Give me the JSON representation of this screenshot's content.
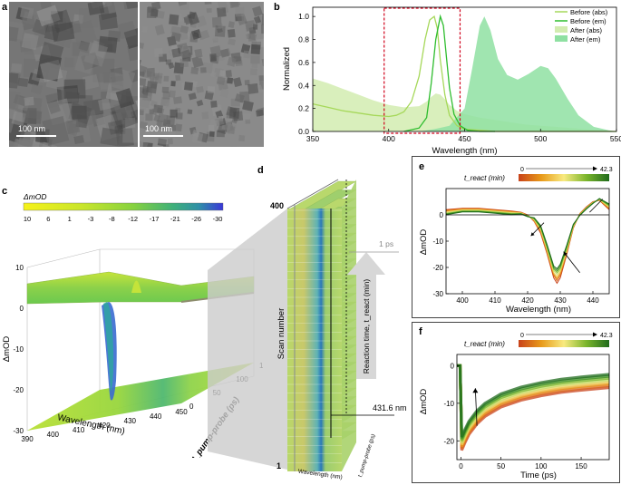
{
  "panels": {
    "a": "a",
    "b": "b",
    "c": "c",
    "d": "d",
    "e": "e",
    "f": "f"
  },
  "tem": {
    "left_scale": "100 nm",
    "right_scale": "100 nm"
  },
  "colors": {
    "before_abs": "#a6d85a",
    "before_em": "#2ebd2e",
    "after_abs_fill": "#d2ecb0",
    "after_em_fill": "#8fe0a2",
    "highlight": "#d0021b",
    "box_border": "#444444"
  },
  "chart_data": [
    {
      "id": "b",
      "type": "line",
      "title": "",
      "xlabel": "Wavelength (nm)",
      "ylabel": "Normalized",
      "xlim": [
        350,
        550
      ],
      "ylim": [
        0,
        1.08
      ],
      "xticks": [
        "350",
        "400",
        "450",
        "500",
        "550"
      ],
      "yticks": [
        "0.0",
        "0.2",
        "0.4",
        "0.6",
        "0.8",
        "1.0"
      ],
      "highlight_box_x": [
        397,
        447
      ],
      "legend": [
        "Before (abs)",
        "Before (em)",
        "After (abs)",
        "After (em)"
      ],
      "series": [
        {
          "name": "After (abs)",
          "style": "area",
          "x": [
            350,
            360,
            370,
            380,
            390,
            400,
            410,
            420,
            425,
            428,
            431,
            434,
            437,
            440,
            445,
            450,
            460,
            470,
            480,
            490,
            500,
            510,
            520,
            530,
            540,
            550
          ],
          "y": [
            0.46,
            0.42,
            0.37,
            0.32,
            0.27,
            0.23,
            0.21,
            0.22,
            0.26,
            0.3,
            0.33,
            0.32,
            0.28,
            0.23,
            0.18,
            0.15,
            0.12,
            0.1,
            0.08,
            0.06,
            0.05,
            0.04,
            0.03,
            0.02,
            0.01,
            0.0
          ]
        },
        {
          "name": "After (em)",
          "style": "area",
          "x": [
            420,
            430,
            440,
            450,
            455,
            460,
            463,
            467,
            472,
            478,
            485,
            492,
            500,
            505,
            510,
            518,
            525,
            535,
            545,
            550
          ],
          "y": [
            0.0,
            0.02,
            0.05,
            0.2,
            0.55,
            0.92,
            1.0,
            0.88,
            0.63,
            0.49,
            0.45,
            0.5,
            0.57,
            0.55,
            0.46,
            0.28,
            0.14,
            0.04,
            0.01,
            0.0
          ]
        },
        {
          "name": "Before (abs)",
          "style": "line",
          "x": [
            350,
            360,
            370,
            380,
            390,
            400,
            405,
            410,
            415,
            420,
            424,
            427,
            430,
            432,
            434,
            437,
            440,
            445,
            450,
            460,
            470,
            480,
            500,
            550
          ],
          "y": [
            0.24,
            0.21,
            0.18,
            0.16,
            0.14,
            0.13,
            0.14,
            0.17,
            0.26,
            0.48,
            0.8,
            0.97,
            1.0,
            0.9,
            0.62,
            0.32,
            0.14,
            0.05,
            0.02,
            0.01,
            0.0,
            0.0,
            0.0,
            0.0
          ]
        },
        {
          "name": "Before (em)",
          "style": "line",
          "x": [
            410,
            420,
            425,
            428,
            431,
            434,
            436,
            438,
            440,
            443,
            447,
            452,
            460,
            470
          ],
          "y": [
            0.0,
            0.03,
            0.12,
            0.42,
            0.8,
            1.0,
            0.92,
            0.65,
            0.38,
            0.15,
            0.05,
            0.01,
            0.0,
            0.0
          ]
        }
      ]
    },
    {
      "id": "c",
      "type": "heatmap",
      "title": "ΔmOD",
      "xlabel": "Wavelength (nm)",
      "ylabel": "t_pump-probe (ps)",
      "zlabel": "ΔmOD",
      "colorbar_ticks": [
        "10",
        "6",
        "1",
        "-3",
        "-8",
        "-12",
        "-17",
        "-21",
        "-26",
        "-30"
      ],
      "colorbar_colors": [
        "#f6f21a",
        "#e2ec22",
        "#c7e52c",
        "#a8dc36",
        "#86d23f",
        "#5fc751",
        "#3eb07a",
        "#2f8fa8",
        "#2f63c9",
        "#3a37d8"
      ],
      "xticks": [
        "390",
        "400",
        "410",
        "420",
        "430",
        "440",
        "450"
      ],
      "yticks": [
        "0",
        "50",
        "100",
        "150"
      ],
      "zticks": [
        "10",
        "0",
        "-10",
        "-20",
        "-30"
      ],
      "zlim": [
        -30,
        10
      ],
      "min_value": -30,
      "min_wavelength": 429
    },
    {
      "id": "d",
      "type": "heatmap",
      "title": "",
      "ylabel": "Scan number",
      "xlabel": "Wavelength (nm)",
      "zlabel": "t_pump-probe (ps)",
      "scan_range": [
        "1",
        "400"
      ],
      "slice_time": "1 ps",
      "slice_wavelength": "431.6 nm",
      "arrow_text": "Reaction time, t_react (min)"
    },
    {
      "id": "e",
      "type": "line",
      "xlabel": "Wavelength (nm)",
      "ylabel": "ΔmOD",
      "xlim": [
        395,
        445
      ],
      "ylim": [
        -30,
        10
      ],
      "xticks": [
        "400",
        "410",
        "420",
        "430",
        "440"
      ],
      "yticks": [
        "0",
        "-10",
        "-20",
        "-30"
      ],
      "colorbar_label": "t_react (min)",
      "colorbar_range": [
        "0",
        "42.3"
      ],
      "series_count": 8,
      "x": [
        395,
        400,
        405,
        410,
        415,
        418,
        420,
        422,
        424,
        426,
        428,
        429,
        430,
        432,
        434,
        436,
        438,
        440,
        442,
        445
      ],
      "series": [
        {
          "t": 0,
          "values": [
            2,
            2.5,
            2.5,
            2,
            1.5,
            1,
            0,
            -2.5,
            -7,
            -15,
            -24,
            -26,
            -24,
            -15,
            -5,
            0.5,
            3,
            5,
            5.5,
            2
          ]
        },
        {
          "t": 6,
          "values": [
            1.7,
            2.3,
            2.3,
            1.8,
            1.3,
            0.9,
            -0.1,
            -2.3,
            -6.5,
            -14.5,
            -23,
            -25,
            -23,
            -14.5,
            -4.8,
            0.4,
            2.8,
            4.9,
            5.6,
            2.3
          ]
        },
        {
          "t": 12,
          "values": [
            1.4,
            2.1,
            2.1,
            1.6,
            1.1,
            0.8,
            -0.2,
            -2.1,
            -6.1,
            -14,
            -22.5,
            -24.2,
            -22.3,
            -14,
            -4.6,
            0.3,
            2.7,
            4.8,
            5.7,
            2.6
          ]
        },
        {
          "t": 18,
          "values": [
            1.1,
            1.9,
            1.9,
            1.4,
            0.9,
            0.7,
            -0.3,
            -1.9,
            -5.7,
            -13.5,
            -22,
            -23.4,
            -21.6,
            -13.5,
            -4.4,
            0.2,
            2.6,
            4.7,
            5.8,
            2.9
          ]
        },
        {
          "t": 24,
          "values": [
            0.8,
            1.7,
            1.7,
            1.2,
            0.7,
            0.6,
            -0.4,
            -1.7,
            -5.3,
            -13,
            -21.3,
            -22.6,
            -20.9,
            -13,
            -4.2,
            0.1,
            2.5,
            4.6,
            5.9,
            3.2
          ]
        },
        {
          "t": 30,
          "values": [
            0.5,
            1.5,
            1.5,
            1,
            0.5,
            0.5,
            -0.5,
            -1.5,
            -4.9,
            -12.5,
            -20.7,
            -21.9,
            -20.2,
            -12.5,
            -4,
            0,
            2.4,
            4.5,
            6,
            3.5
          ]
        },
        {
          "t": 36,
          "values": [
            0.3,
            1.3,
            1.3,
            0.8,
            0.3,
            0.4,
            -0.6,
            -1.3,
            -4.5,
            -12,
            -20.1,
            -21.2,
            -19.5,
            -12,
            -3.8,
            -0.1,
            2.3,
            4.4,
            6.1,
            3.8
          ]
        },
        {
          "t": 42.3,
          "values": [
            0.1,
            1.1,
            1.1,
            0.6,
            0.1,
            0.3,
            -0.7,
            -1.1,
            -4.1,
            -11.5,
            -19.5,
            -20.5,
            -18.8,
            -11.5,
            -3.6,
            -0.2,
            2.2,
            4.3,
            6.2,
            4.1
          ]
        }
      ]
    },
    {
      "id": "f",
      "type": "line",
      "xlabel": "Time (ps)",
      "ylabel": "ΔmOD",
      "xlim": [
        -5,
        185
      ],
      "ylim": [
        -25,
        3
      ],
      "xticks": [
        "0",
        "50",
        "100",
        "150"
      ],
      "yticks": [
        "0",
        "-10",
        "-20"
      ],
      "colorbar_label": "t_react (min)",
      "colorbar_range": [
        "0",
        "42.3"
      ],
      "series_count": 8,
      "x": [
        -5,
        -1,
        0,
        1,
        3,
        5,
        10,
        20,
        30,
        50,
        75,
        100,
        125,
        150,
        185
      ],
      "series": [
        {
          "t": 0,
          "values": [
            0,
            0,
            -10,
            -22.5,
            -21.5,
            -20.5,
            -18.3,
            -15.5,
            -13.5,
            -11,
            -9.2,
            -8,
            -7.1,
            -6.5,
            -5.8
          ]
        },
        {
          "t": 6,
          "values": [
            0,
            0,
            -10,
            -22,
            -21,
            -20,
            -17.8,
            -15,
            -13,
            -10.5,
            -8.7,
            -7.5,
            -6.6,
            -6,
            -5.3
          ]
        },
        {
          "t": 12,
          "values": [
            0,
            0,
            -10,
            -21.5,
            -20.5,
            -19.5,
            -17.3,
            -14.5,
            -12.5,
            -10,
            -8.2,
            -7,
            -6.1,
            -5.5,
            -4.8
          ]
        },
        {
          "t": 18,
          "values": [
            0,
            0,
            -10,
            -21,
            -20,
            -19,
            -16.8,
            -14,
            -12,
            -9.5,
            -7.7,
            -6.5,
            -5.6,
            -5,
            -4.3
          ]
        },
        {
          "t": 24,
          "values": [
            0,
            0,
            -10,
            -20.5,
            -19.5,
            -18.5,
            -16.3,
            -13.5,
            -11.5,
            -9,
            -7.2,
            -6,
            -5.1,
            -4.5,
            -3.8
          ]
        },
        {
          "t": 30,
          "values": [
            0,
            0,
            -10,
            -20,
            -19,
            -18,
            -15.8,
            -13,
            -11,
            -8.5,
            -6.7,
            -5.5,
            -4.6,
            -4,
            -3.3
          ]
        },
        {
          "t": 36,
          "values": [
            0,
            0,
            -10,
            -19.5,
            -18.5,
            -17.5,
            -15.3,
            -12.5,
            -10.5,
            -8,
            -6.2,
            -5,
            -4.1,
            -3.5,
            -2.8
          ]
        },
        {
          "t": 42.3,
          "values": [
            0,
            0,
            -10,
            -19,
            -18,
            -17,
            -14.8,
            -12,
            -10,
            -7.5,
            -5.7,
            -4.5,
            -3.6,
            -3,
            -2.3
          ]
        }
      ]
    }
  ]
}
